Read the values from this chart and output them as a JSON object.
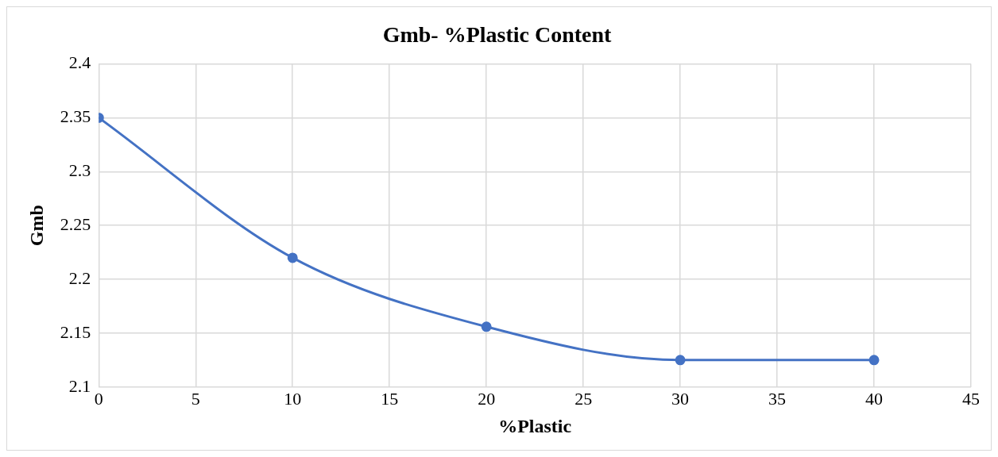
{
  "chart_data": {
    "type": "line",
    "title": "Gmb- %Plastic Content",
    "xlabel": "%Plastic",
    "ylabel": "Gmb",
    "x": [
      0,
      10,
      20,
      30,
      40
    ],
    "series": [
      {
        "color": "#4472c4",
        "values": [
          2.35,
          2.22,
          2.156,
          2.125,
          2.125
        ]
      }
    ],
    "xlim": [
      0,
      45
    ],
    "xticks": [
      0,
      5,
      10,
      15,
      20,
      25,
      30,
      35,
      40,
      45
    ],
    "ylim": [
      2.1,
      2.4
    ],
    "yticks": [
      2.1,
      2.15,
      2.2,
      2.25,
      2.3,
      2.35,
      2.4
    ],
    "grid": true,
    "legend": false,
    "marker": "circle",
    "line_style": "solid"
  }
}
